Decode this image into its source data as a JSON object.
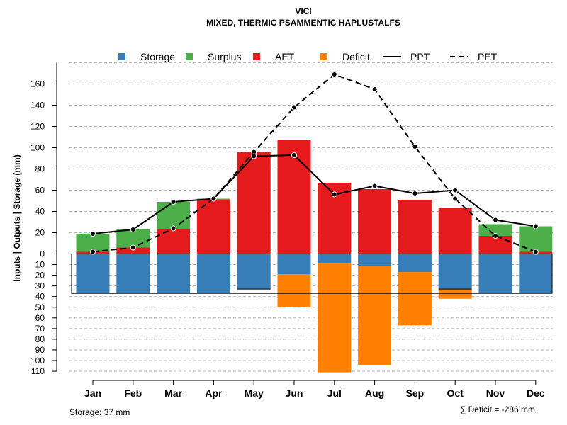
{
  "chart_data": {
    "type": "bar",
    "title": "VICI",
    "subtitle": "MIXED, THERMIC PSAMMENTIC HAPLUSTALFS",
    "ylabel": "Inputs | Outputs | Storage    (mm)",
    "categories": [
      "Jan",
      "Feb",
      "Mar",
      "Apr",
      "May",
      "Jun",
      "Jul",
      "Aug",
      "Sep",
      "Oct",
      "Nov",
      "Dec"
    ],
    "ylim_top": [
      0,
      170
    ],
    "ylim_bottom": [
      0,
      110
    ],
    "yticks_top": [
      "0",
      "20",
      "40",
      "60",
      "80",
      "100",
      "120",
      "140",
      "160"
    ],
    "yticks_bottom": [
      "10",
      "20",
      "30",
      "40",
      "50",
      "60",
      "70",
      "80",
      "90",
      "100",
      "110"
    ],
    "series": [
      {
        "name": "AET",
        "color": "#E41A1C",
        "values": [
          2,
          6,
          23,
          51,
          96,
          107,
          67,
          61,
          51,
          43,
          17,
          2
        ]
      },
      {
        "name": "Surplus",
        "color": "#4DAF4A",
        "values": [
          17,
          17,
          26,
          1,
          0,
          0,
          0,
          0,
          0,
          0,
          11,
          24
        ]
      },
      {
        "name": "Storage",
        "color": "#377EB8",
        "values": [
          37,
          37,
          37,
          37,
          33,
          19,
          9,
          11,
          17,
          33,
          37,
          37
        ]
      },
      {
        "name": "Deficit",
        "color": "#FF7F00",
        "values": [
          0,
          0,
          0,
          0,
          0,
          31,
          102,
          93,
          50,
          9,
          0,
          0
        ]
      },
      {
        "name": "PPT",
        "values": [
          19,
          23,
          49,
          52,
          92,
          93,
          56,
          64,
          57,
          60,
          32,
          26
        ]
      },
      {
        "name": "PET",
        "values": [
          2,
          6,
          24,
          52,
          96,
          138,
          169,
          155,
          101,
          52,
          17,
          2
        ]
      }
    ],
    "legend": [
      {
        "label": "Storage",
        "color": "#377EB8",
        "kind": "box"
      },
      {
        "label": "Surplus",
        "color": "#4DAF4A",
        "kind": "box"
      },
      {
        "label": "AET",
        "color": "#E41A1C",
        "kind": "box"
      },
      {
        "label": "Deficit",
        "color": "#FF7F00",
        "kind": "box"
      },
      {
        "label": "PPT",
        "color": "#000000",
        "kind": "solid"
      },
      {
        "label": "PET",
        "color": "#000000",
        "kind": "dashed"
      }
    ],
    "storage_capacity": 37,
    "storage_note": "Storage: 37 mm",
    "deficit_note": "∑ Deficit = -286 mm",
    "grid": true,
    "legend_position": "top"
  }
}
